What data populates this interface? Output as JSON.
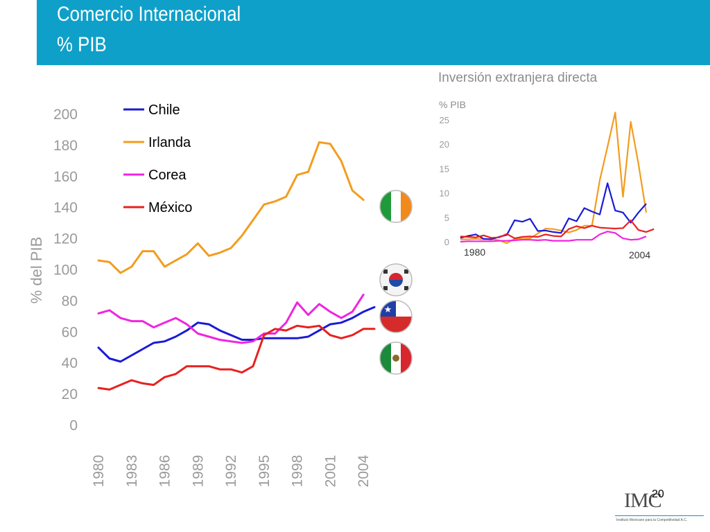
{
  "slide": {
    "title": "Comercio Internacional",
    "subtitle": "% PIB",
    "page_number": "20",
    "logo_text": "IMC",
    "logo_caption": "Instituto Mexicano para la Competitividad A.C."
  },
  "chart_data": [
    {
      "type": "line",
      "title": "",
      "xlabel": "",
      "ylabel": "% del PIB",
      "ylim": [
        0,
        200
      ],
      "yticks": [
        0,
        20,
        40,
        60,
        80,
        100,
        120,
        140,
        160,
        180,
        200
      ],
      "xticks": [
        "1980",
        "1983",
        "1986",
        "1989",
        "1992",
        "1995",
        "1998",
        "2001",
        "2004"
      ],
      "grid": false,
      "legend": "top-left",
      "x": [
        1980,
        1981,
        1982,
        1983,
        1984,
        1985,
        1986,
        1987,
        1988,
        1989,
        1990,
        1991,
        1992,
        1993,
        1994,
        1995,
        1996,
        1997,
        1998,
        1999,
        2000,
        2001,
        2002,
        2003,
        2004,
        2005
      ],
      "series": [
        {
          "name": "Chile",
          "color": "#1a1ad6",
          "values": [
            50,
            43,
            41,
            45,
            49,
            53,
            54,
            57,
            61,
            66,
            65,
            61,
            58,
            55,
            55,
            56,
            56,
            56,
            56,
            57,
            61,
            65,
            66,
            69,
            73,
            76
          ]
        },
        {
          "name": "Irlanda",
          "color": "#f39c1e",
          "values": [
            106,
            105,
            98,
            102,
            112,
            112,
            102,
            106,
            110,
            117,
            109,
            111,
            114,
            122,
            132,
            142,
            144,
            147,
            161,
            163,
            182,
            181,
            170,
            151,
            145,
            null
          ]
        },
        {
          "name": "Corea",
          "color": "#f024e0",
          "values": [
            72,
            74,
            69,
            67,
            67,
            63,
            66,
            69,
            65,
            59,
            57,
            55,
            54,
            53,
            54,
            59,
            59,
            66,
            79,
            71,
            78,
            73,
            69,
            73,
            84,
            null
          ]
        },
        {
          "name": "México",
          "color": "#e8201f",
          "values": [
            24,
            23,
            26,
            29,
            27,
            26,
            31,
            33,
            38,
            38,
            38,
            36,
            36,
            34,
            38,
            58,
            62,
            61,
            64,
            63,
            64,
            58,
            56,
            58,
            62,
            62
          ]
        }
      ],
      "flags": [
        "Irlanda",
        "Corea",
        "Chile",
        "México"
      ]
    },
    {
      "type": "line",
      "title": "Inversión extranjera directa",
      "xlabel": "",
      "ylabel": "%  PIB",
      "ylim": [
        0,
        25
      ],
      "yticks": [
        0,
        5,
        10,
        15,
        20,
        25
      ],
      "x_start_label": "1980",
      "x_end_label": "2004",
      "grid": false,
      "x": [
        1980,
        1981,
        1982,
        1983,
        1984,
        1985,
        1986,
        1987,
        1988,
        1989,
        1990,
        1991,
        1992,
        1993,
        1994,
        1995,
        1996,
        1997,
        1998,
        1999,
        2000,
        2001,
        2002,
        2003,
        2004,
        2005
      ],
      "series": [
        {
          "name": "Irlanda",
          "color": "#f39c1e",
          "values": [
            0.5,
            0.5,
            0.6,
            0.5,
            0.6,
            0.3,
            -0.3,
            0.6,
            0.6,
            0.7,
            1.7,
            2.7,
            2.6,
            2.3,
            1.9,
            2.4,
            3.3,
            3.3,
            12.6,
            19.5,
            26.5,
            9.2,
            24.6,
            16.0,
            6.0,
            null
          ]
        },
        {
          "name": "Chile",
          "color": "#1a1ad6",
          "values": [
            0.8,
            1.2,
            1.5,
            0.6,
            0.5,
            1.0,
            1.4,
            4.4,
            4.1,
            4.7,
            2.2,
            2.3,
            2.0,
            1.8,
            4.8,
            4.2,
            6.9,
            6.2,
            5.6,
            12.0,
            6.4,
            6.0,
            3.9,
            6.0,
            7.8,
            null
          ]
        },
        {
          "name": "México",
          "color": "#e8201f",
          "values": [
            1.1,
            1.0,
            0.9,
            1.3,
            0.8,
            0.9,
            1.6,
            0.7,
            1.0,
            1.1,
            1.0,
            1.5,
            1.2,
            1.1,
            2.6,
            3.2,
            2.8,
            3.3,
            2.9,
            2.8,
            2.7,
            2.8,
            4.4,
            2.4,
            2.0,
            2.6
          ]
        },
        {
          "name": "Corea",
          "color": "#f024e0",
          "values": [
            0.0,
            0.1,
            0.1,
            0.1,
            0.1,
            0.2,
            0.2,
            0.3,
            0.4,
            0.4,
            0.3,
            0.4,
            0.2,
            0.2,
            0.2,
            0.4,
            0.4,
            0.4,
            1.5,
            2.1,
            1.8,
            0.7,
            0.4,
            0.5,
            1.1,
            null
          ]
        }
      ]
    }
  ]
}
